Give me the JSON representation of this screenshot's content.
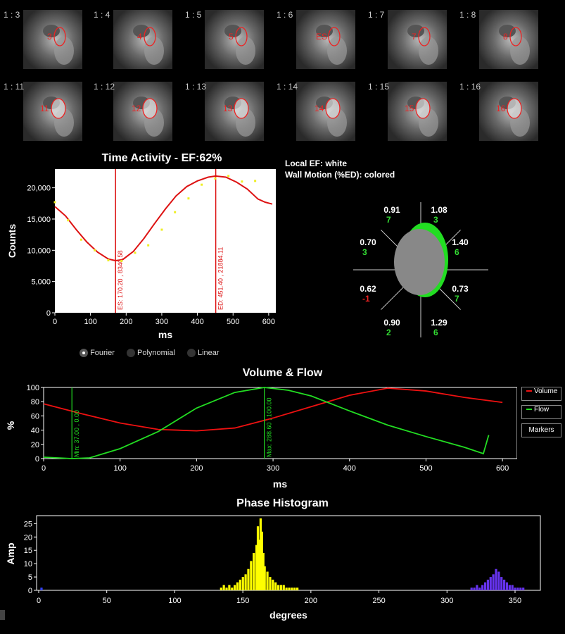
{
  "frames": [
    {
      "label": "1 : 3",
      "roi": "3"
    },
    {
      "label": "1 : 4",
      "roi": "4"
    },
    {
      "label": "1 : 5",
      "roi": "5"
    },
    {
      "label": "1 : 6",
      "roi": "ES"
    },
    {
      "label": "1 : 7",
      "roi": "7"
    },
    {
      "label": "1 : 8",
      "roi": "8"
    },
    {
      "label": "1 : 11",
      "roi": "11"
    },
    {
      "label": "1 : 12",
      "roi": "12"
    },
    {
      "label": "1 : 13",
      "roi": "13"
    },
    {
      "label": "1 : 14",
      "roi": "14"
    },
    {
      "label": "1 : 15",
      "roi": "15"
    },
    {
      "label": "1 : 16",
      "roi": "16"
    }
  ],
  "time_activity": {
    "title": "Time Activity - EF:62%",
    "ylabel": "Counts",
    "xlabel": "ms",
    "es_marker": "ES: 170.20 , 8340.58",
    "ed_marker": "ED: 451.40 , 21884.11"
  },
  "fit_options": {
    "fourier": "Fourier",
    "polynomial": "Polynomial",
    "linear": "Linear",
    "selected": "fourier"
  },
  "bullseye": {
    "legend1": "Local EF: white",
    "legend2": "Wall Motion (%ED): colored",
    "segments": [
      {
        "ef": "0.91",
        "wm": "7",
        "wm_color": "#33dd33"
      },
      {
        "ef": "1.08",
        "wm": "3",
        "wm_color": "#33dd33"
      },
      {
        "ef": "0.70",
        "wm": "3",
        "wm_color": "#33dd33"
      },
      {
        "ef": "1.40",
        "wm": "6",
        "wm_color": "#33dd33"
      },
      {
        "ef": "0.62",
        "wm": "-1",
        "wm_color": "#ee2222"
      },
      {
        "ef": "0.73",
        "wm": "7",
        "wm_color": "#33dd33"
      },
      {
        "ef": "0.90",
        "wm": "2",
        "wm_color": "#33dd33"
      },
      {
        "ef": "1.29",
        "wm": "6",
        "wm_color": "#33dd33"
      }
    ]
  },
  "volume_flow": {
    "title": "Volume & Flow",
    "ylabel": "%",
    "xlabel": "ms",
    "min_marker": "Min: 37.00 , 0.00",
    "max_marker": "Max: 288.60 , 100.00",
    "buttons": {
      "volume": "Volume",
      "flow": "Flow",
      "markers": "Markers"
    }
  },
  "phase_histogram": {
    "title": "Phase Histogram",
    "ylabel": "Amp",
    "xlabel": "degrees"
  },
  "colors": {
    "volume": "#ee1111",
    "flow": "#22dd22",
    "marker": "#dd1111",
    "histogram_main": "#ffff00",
    "histogram_secondary": "#6633ee"
  },
  "chart_data": [
    {
      "type": "line",
      "title": "Time Activity - EF:62%",
      "xlabel": "ms",
      "ylabel": "Counts",
      "xlim": [
        0,
        620
      ],
      "ylim": [
        0,
        23000
      ],
      "xticks": [
        0,
        100,
        200,
        300,
        400,
        500,
        600
      ],
      "yticks": [
        0,
        5000,
        10000,
        15000,
        20000
      ],
      "ytick_labels": [
        "0",
        "5,000",
        "10,000",
        "15,000",
        "20,000"
      ],
      "series": [
        {
          "type": "scatter",
          "x": [
            0,
            37,
            74,
            112,
            150,
            187,
            225,
            262,
            300,
            337,
            375,
            412,
            450,
            487,
            525,
            562
          ],
          "y": [
            17700,
            14800,
            11700,
            10000,
            8400,
            8300,
            9600,
            10800,
            13300,
            16100,
            18300,
            20500,
            21500,
            21900,
            21000,
            21100
          ]
        },
        {
          "type": "line",
          "x": [
            0,
            30,
            60,
            90,
            120,
            150,
            170,
            190,
            220,
            250,
            280,
            310,
            340,
            370,
            400,
            430,
            451,
            480,
            510,
            540,
            570,
            590,
            610
          ],
          "y": [
            17000,
            15500,
            13300,
            11300,
            9700,
            8600,
            8340,
            8500,
            9800,
            11900,
            14300,
            16600,
            18700,
            20200,
            21100,
            21700,
            21884,
            21700,
            20900,
            19800,
            18200,
            17700,
            17400
          ]
        }
      ],
      "markers": [
        {
          "x": 170.2,
          "y": 8340.58
        },
        {
          "x": 451.4,
          "y": 21884.11
        }
      ]
    },
    {
      "type": "line",
      "title": "Volume & Flow",
      "xlabel": "ms",
      "ylabel": "%",
      "xlim": [
        0,
        610
      ],
      "ylim": [
        0,
        100
      ],
      "xticks": [
        0,
        100,
        200,
        300,
        400,
        500,
        600
      ],
      "yticks": [
        0,
        20,
        40,
        60,
        80,
        100
      ],
      "series": [
        {
          "name": "Volume",
          "x": [
            0,
            50,
            100,
            150,
            200,
            250,
            300,
            350,
            400,
            450,
            500,
            550,
            600
          ],
          "y": [
            77,
            63,
            50,
            41,
            39,
            43,
            57,
            73,
            89,
            99,
            95,
            86,
            79
          ]
        },
        {
          "name": "Flow",
          "x": [
            0,
            37,
            60,
            100,
            150,
            200,
            250,
            288.6,
            320,
            350,
            400,
            450,
            500,
            550,
            575,
            582
          ],
          "y": [
            2,
            0,
            1,
            14,
            38,
            71,
            93,
            100,
            96,
            88,
            67,
            47,
            31,
            16,
            7,
            33
          ]
        }
      ],
      "markers": [
        {
          "x": 37,
          "y": 0
        },
        {
          "x": 288.6,
          "y": 100
        }
      ]
    },
    {
      "type": "bar",
      "title": "Phase Histogram",
      "xlabel": "degrees",
      "ylabel": "Amp",
      "xlim": [
        0,
        365
      ],
      "ylim": [
        0,
        28
      ],
      "xticks": [
        0,
        50,
        100,
        150,
        200,
        250,
        300,
        350
      ],
      "yticks": [
        0,
        5,
        10,
        15,
        20,
        25
      ],
      "series": [
        {
          "name": "main",
          "x": [
            2,
            134,
            136,
            138,
            140,
            142,
            144,
            146,
            148,
            150,
            152,
            154,
            156,
            158,
            160,
            161,
            162,
            163,
            164,
            165,
            166,
            168,
            170,
            172,
            174,
            176,
            178,
            180,
            182,
            184,
            186,
            188,
            190
          ],
          "y": [
            1,
            1,
            2,
            1,
            2,
            1,
            2,
            3,
            4,
            5,
            6,
            8,
            11,
            14,
            17,
            24,
            19,
            27,
            22,
            14,
            9,
            7,
            5,
            4,
            3,
            2,
            2,
            2,
            1,
            1,
            1,
            1,
            1
          ]
        },
        {
          "name": "secondary",
          "x": [
            318,
            320,
            322,
            324,
            326,
            328,
            330,
            332,
            334,
            336,
            338,
            340,
            342,
            344,
            346,
            348,
            350,
            352,
            354,
            356
          ],
          "y": [
            1,
            1,
            2,
            1,
            2,
            3,
            4,
            5,
            6,
            8,
            7,
            5,
            4,
            3,
            2,
            2,
            1,
            1,
            1,
            1
          ]
        }
      ]
    }
  ]
}
